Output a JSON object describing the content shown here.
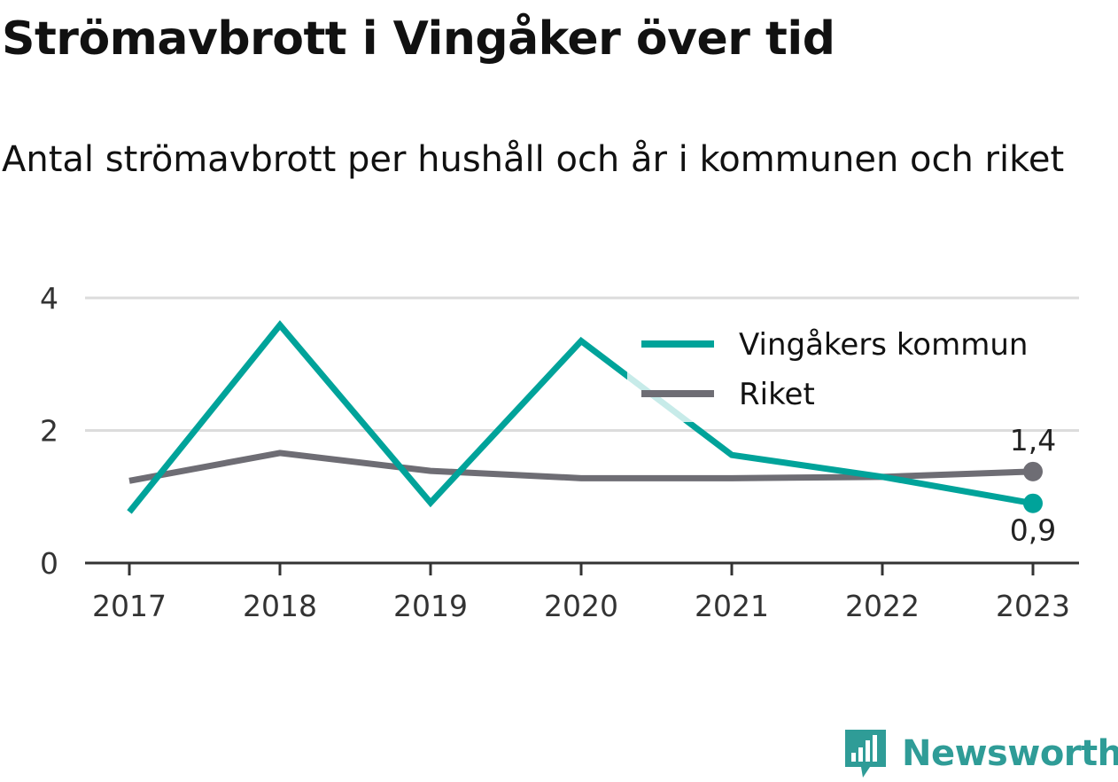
{
  "title": "Strömavbrott i Vingåker över tid",
  "subtitle": "Antal strömavbrott per hushåll och år i kommunen och riket",
  "brand": {
    "name": "Newsworthy",
    "icon": "bar-chart-speech-bubble-icon"
  },
  "colors": {
    "vingaker": "#00a39a",
    "riket": "#6e6d74",
    "gridline": "#dcdcdc",
    "axis": "#333333",
    "brand": "#2f9c97"
  },
  "chart_data": {
    "type": "line",
    "title": "Strömavbrott i Vingåker över tid",
    "subtitle": "Antal strömavbrott per hushåll och år i kommunen och riket",
    "xlabel": "",
    "ylabel": "",
    "x": [
      "2017",
      "2018",
      "2019",
      "2020",
      "2021",
      "2022",
      "2023"
    ],
    "ylim": [
      0,
      4
    ],
    "yticks": [
      {
        "value": 0,
        "label": "0"
      },
      {
        "value": 2,
        "label": "2"
      },
      {
        "value": 4,
        "label": "4"
      }
    ],
    "grid": true,
    "legend_position": "top-right",
    "series": [
      {
        "name": "Vingåkers kommun",
        "key": "vingaker",
        "values": [
          0.77,
          3.59,
          0.91,
          3.35,
          1.63,
          1.3,
          0.9
        ],
        "end_label": "0,9",
        "end_label_side": "below"
      },
      {
        "name": "Riket",
        "key": "riket",
        "values": [
          1.24,
          1.66,
          1.39,
          1.28,
          1.28,
          1.3,
          1.38
        ],
        "end_label": "1,4",
        "end_label_side": "above"
      }
    ]
  }
}
